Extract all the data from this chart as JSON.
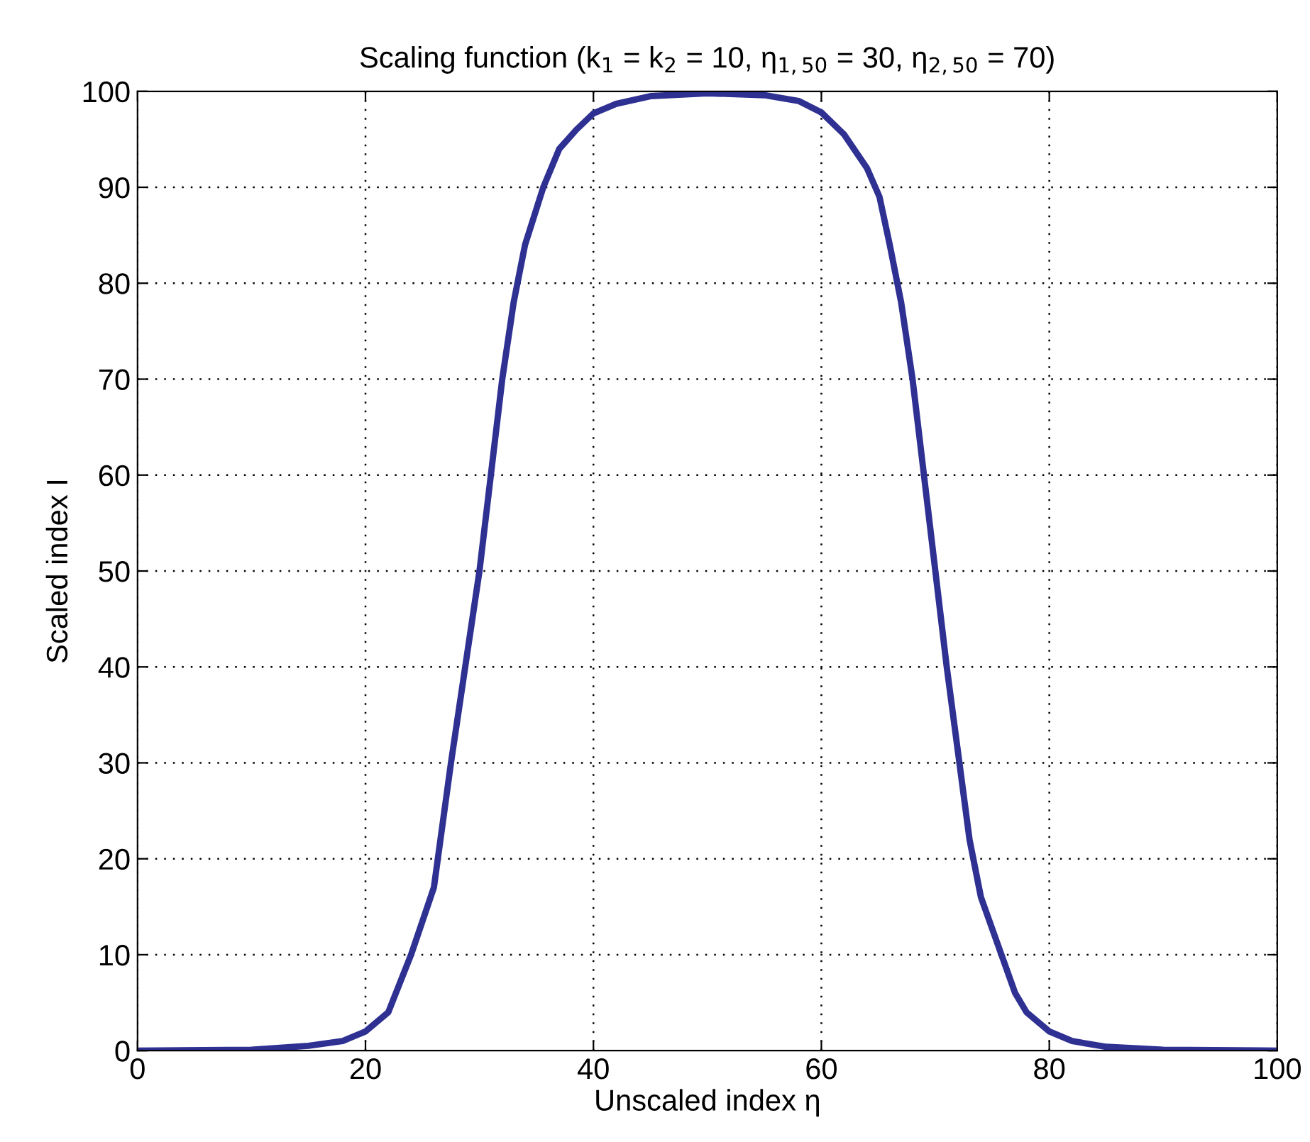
{
  "chart_data": {
    "type": "line",
    "title": "Scaling function (k$_{1}$ = k$_{2}$ = 10, η$_{1,50}$ = 30, η$_{2,50}$ = 70)",
    "xlabel": "Unscaled index η",
    "ylabel": "Scaled index I",
    "x": [
      0,
      10,
      15,
      18,
      20,
      22,
      24,
      26,
      27.5,
      29,
      30,
      31,
      32,
      33,
      34,
      35.6,
      37,
      38.5,
      40,
      42,
      45,
      50,
      55,
      58,
      60,
      62,
      64,
      65.1,
      66,
      67,
      68,
      69,
      70,
      71,
      72,
      73,
      74,
      75.8,
      77,
      78,
      80,
      82,
      85,
      90,
      100
    ],
    "series": [
      {
        "color": "#2e3192",
        "values": [
          0,
          0.1,
          0.5,
          1,
          2,
          4,
          10,
          17,
          30,
          42,
          50,
          60,
          70,
          78,
          84,
          90,
          94,
          96,
          97.7,
          98.7,
          99.5,
          99.8,
          99.6,
          99,
          97.8,
          95.5,
          92,
          89,
          84,
          78,
          70,
          60,
          50,
          40,
          31,
          22,
          16,
          10,
          6,
          4,
          2,
          1,
          0.4,
          0.1,
          0
        ]
      }
    ],
    "xlim": [
      0,
      100
    ],
    "xticks": [
      0,
      20,
      40,
      60,
      80,
      100
    ],
    "ylim": [
      0,
      100
    ],
    "yticks": [
      0,
      10,
      20,
      30,
      40,
      50,
      60,
      70,
      80,
      90,
      100
    ],
    "grid": true,
    "line_style": "solid",
    "marker": "none"
  }
}
